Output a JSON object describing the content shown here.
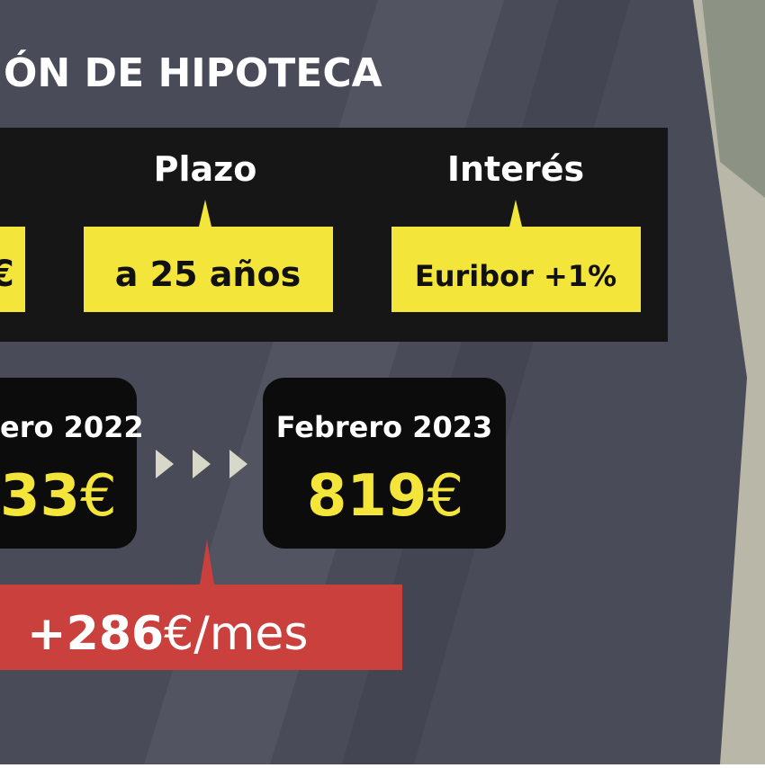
{
  "header": {
    "title": "ÓN DE HIPOTECA"
  },
  "terms": [
    {
      "label": null,
      "value": "€"
    },
    {
      "label": "Plazo",
      "value": "a 25 años"
    },
    {
      "label": "Interés",
      "value": "Euribor +1%"
    }
  ],
  "payments": [
    {
      "date": "ero 2022",
      "amount": "33",
      "currency": "€"
    },
    {
      "date": "Febrero 2023",
      "amount": "819",
      "currency": "€"
    }
  ],
  "difference": {
    "amount": "+286",
    "unit": "€/mes"
  }
}
